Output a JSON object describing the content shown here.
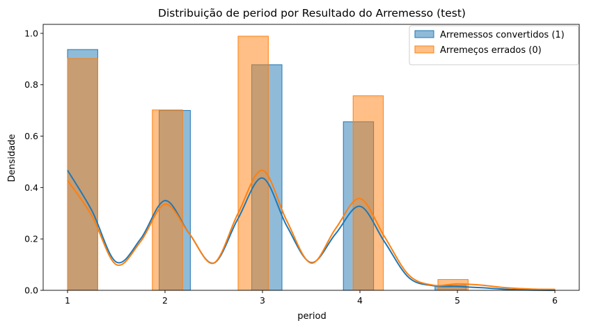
{
  "chart_data": {
    "type": "bar",
    "title": "Distribuição de period por Resultado do Arremesso (test)",
    "xlabel": "period",
    "ylabel": "Densidade",
    "xlim": [
      0.75,
      6.25
    ],
    "ylim": [
      0,
      1.035
    ],
    "xticks": [
      "1",
      "2",
      "3",
      "4",
      "5",
      "6"
    ],
    "yticks": [
      "0.0",
      "0.2",
      "0.4",
      "0.6",
      "0.8",
      "1.0"
    ],
    "grid": false,
    "legend_position": "top-right",
    "series": [
      {
        "name": "Arremessos convertidos (1)",
        "color": "#1f77b4",
        "bins": [
          {
            "x0": 1.0,
            "x1": 1.31,
            "value": 0.937
          },
          {
            "x0": 1.94,
            "x1": 2.26,
            "value": 0.7
          },
          {
            "x0": 2.89,
            "x1": 3.2,
            "value": 0.878
          },
          {
            "x0": 3.83,
            "x1": 4.14,
            "value": 0.656
          },
          {
            "x0": 4.77,
            "x1": 5.09,
            "value": 0.019
          }
        ],
        "kde": {
          "x": [
            1.0,
            1.25,
            1.5,
            1.75,
            2.0,
            2.25,
            2.5,
            2.75,
            3.0,
            3.25,
            3.5,
            3.75,
            4.0,
            4.25,
            4.5,
            4.75,
            5.0,
            5.25,
            5.5,
            5.75,
            6.0
          ],
          "y": [
            0.467,
            0.31,
            0.11,
            0.2,
            0.349,
            0.22,
            0.106,
            0.28,
            0.437,
            0.25,
            0.108,
            0.22,
            0.327,
            0.19,
            0.05,
            0.018,
            0.015,
            0.01,
            0.004,
            0.001,
            0.0
          ]
        }
      },
      {
        "name": "Arremeços errados (0)",
        "color": "#ff7f0e",
        "bins": [
          {
            "x0": 1.0,
            "x1": 1.31,
            "value": 0.902
          },
          {
            "x0": 1.87,
            "x1": 2.18,
            "value": 0.702
          },
          {
            "x0": 2.75,
            "x1": 3.06,
            "value": 0.989
          },
          {
            "x0": 3.93,
            "x1": 4.24,
            "value": 0.757
          },
          {
            "x0": 4.8,
            "x1": 5.11,
            "value": 0.042
          },
          {
            "x0": 5.69,
            "x1": 6.0,
            "value": 0.005
          }
        ],
        "kde": {
          "x": [
            1.0,
            1.25,
            1.5,
            1.75,
            2.0,
            2.25,
            2.5,
            2.75,
            3.0,
            3.25,
            3.5,
            3.75,
            4.0,
            4.25,
            4.5,
            4.75,
            5.0,
            5.25,
            5.5,
            5.75,
            6.0
          ],
          "y": [
            0.428,
            0.29,
            0.1,
            0.19,
            0.335,
            0.22,
            0.106,
            0.3,
            0.467,
            0.27,
            0.106,
            0.24,
            0.357,
            0.21,
            0.06,
            0.02,
            0.025,
            0.02,
            0.01,
            0.005,
            0.003
          ]
        }
      }
    ]
  }
}
